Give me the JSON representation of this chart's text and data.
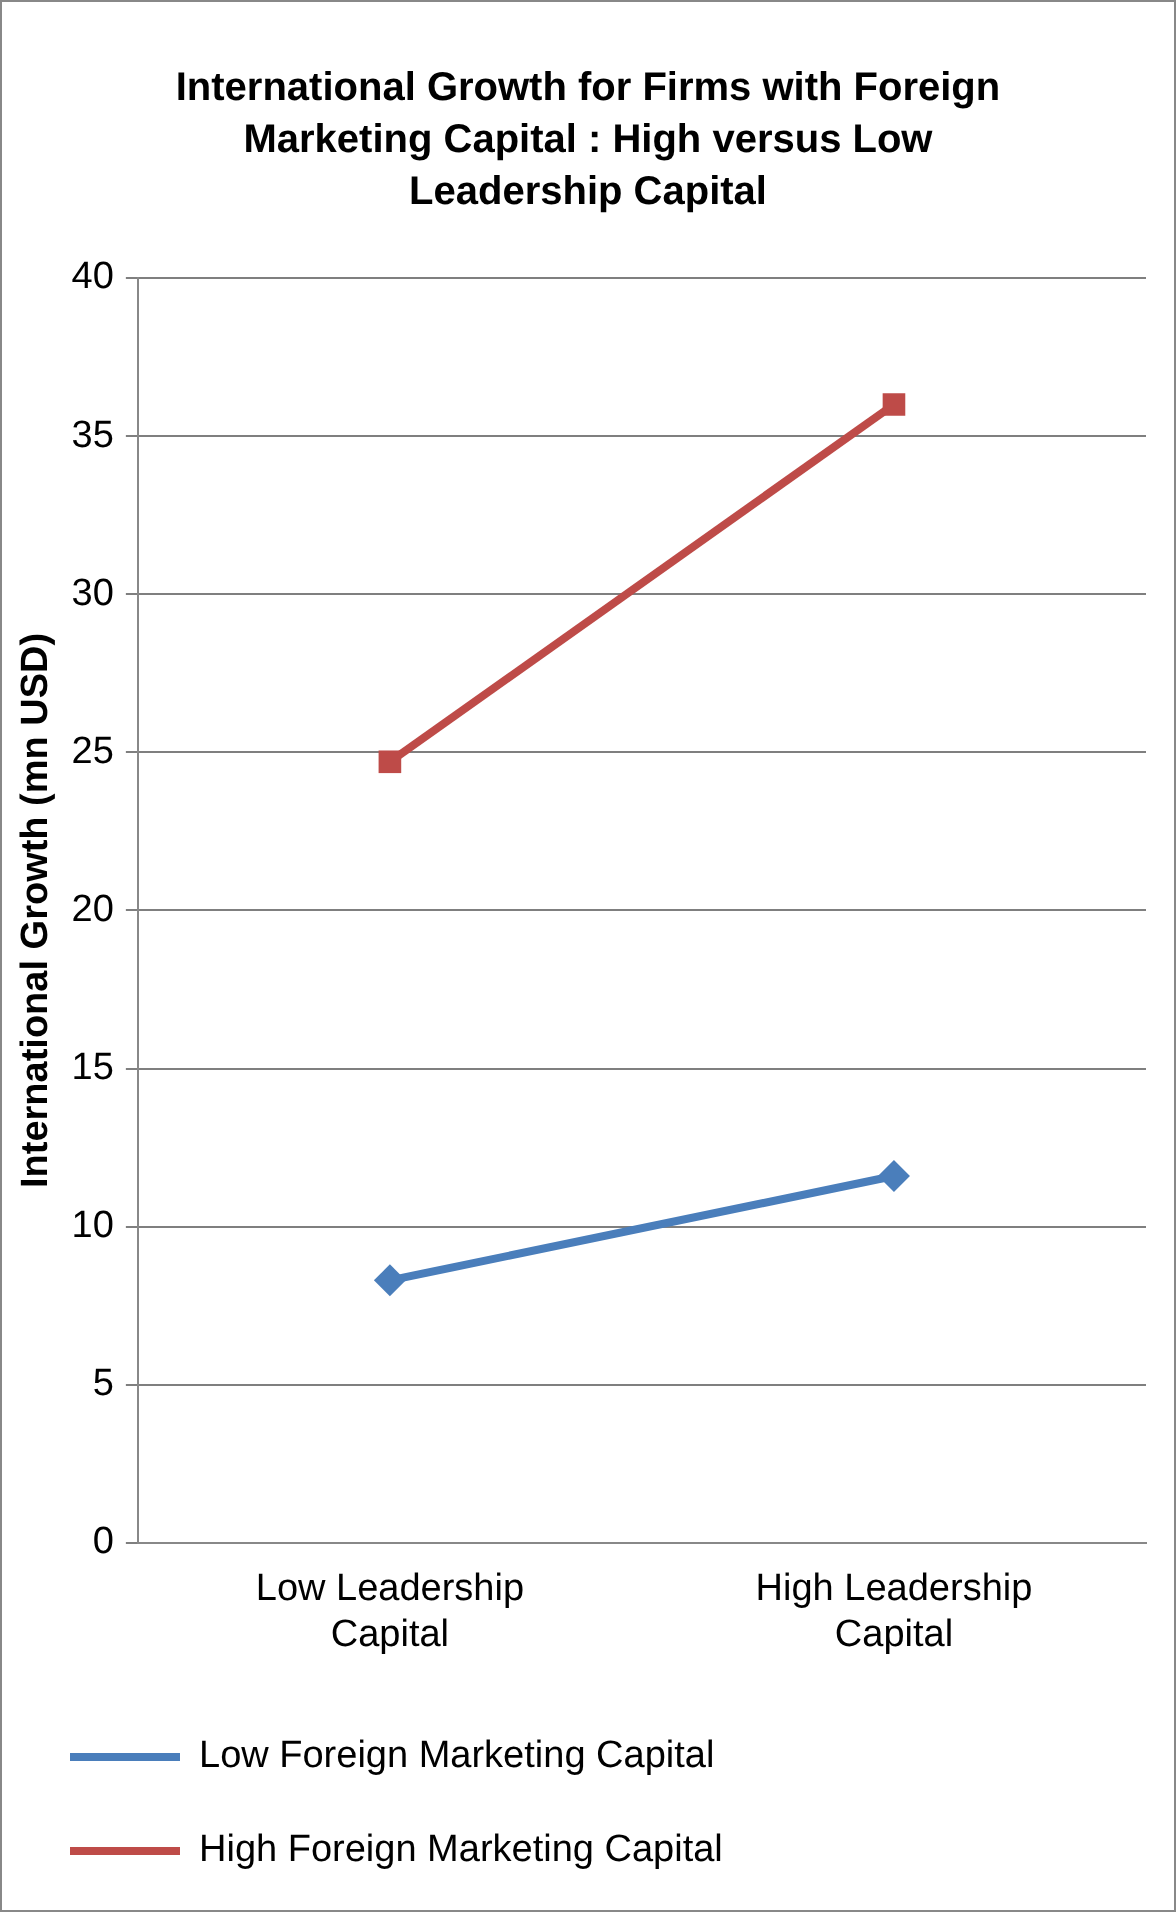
{
  "chart_data": {
    "type": "line",
    "title": "International Growth for Firms with Foreign Marketing Capital : High versus Low Leadership Capital",
    "ylabel": "International Growth (mn USD)",
    "categories": [
      "Low Leadership Capital",
      "High Leadership Capital"
    ],
    "series": [
      {
        "name": "Low Foreign Marketing Capital",
        "color": "#4a7ebb",
        "values": [
          8.3,
          11.6
        ],
        "marker": "diamond"
      },
      {
        "name": "High Foreign Marketing Capital",
        "color": "#be4b48",
        "values": [
          24.7,
          36.0
        ],
        "marker": "square"
      }
    ],
    "ylim": [
      0,
      40
    ],
    "yticks": [
      0,
      5,
      10,
      15,
      20,
      25,
      30,
      35,
      40
    ],
    "grid": "y",
    "legend": "bottom",
    "line_style": "solid"
  }
}
